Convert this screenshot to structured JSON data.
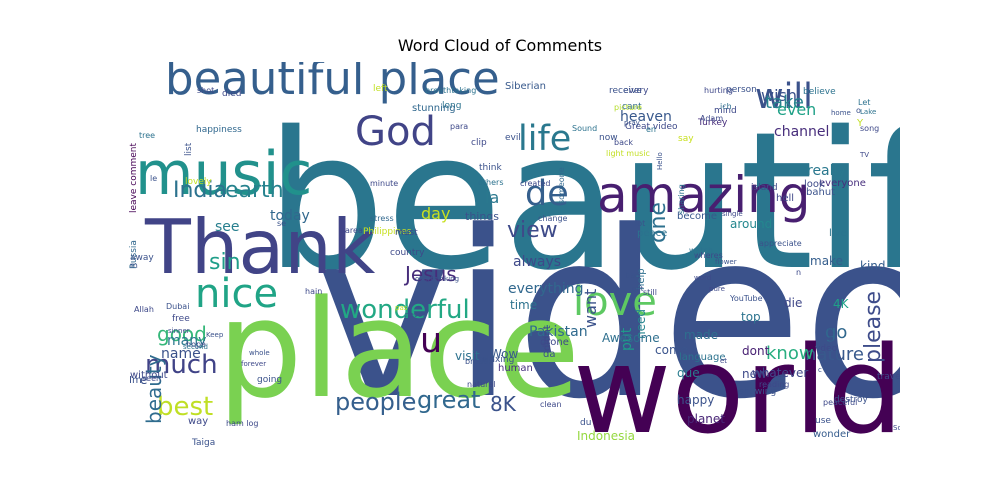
{
  "title": "Word Cloud of Comments",
  "words": [
    {
      "text": "beautiful",
      "color": "#2a768e",
      "weight": 190
    },
    {
      "text": "video",
      "color": "#3b528b",
      "weight": 230
    },
    {
      "text": "place",
      "color": "#7ad151",
      "weight": 135
    },
    {
      "text": "world",
      "color": "#440154",
      "weight": 120
    },
    {
      "text": "Thank",
      "color": "#414487",
      "weight": 75
    },
    {
      "text": "music",
      "color": "#21918c",
      "weight": 60
    },
    {
      "text": "beautiful place",
      "color": "#355f8d",
      "weight": 45
    },
    {
      "text": "amazing",
      "color": "#481f70",
      "weight": 50
    },
    {
      "text": "love",
      "color": "#5ec962",
      "weight": 40
    },
    {
      "text": "nice",
      "color": "#20a486",
      "weight": 40
    },
    {
      "text": "God",
      "color": "#414487",
      "weight": 40
    },
    {
      "text": "life",
      "color": "#2a788e",
      "weight": 35
    },
    {
      "text": "de",
      "color": "#355f8d",
      "weight": 35
    },
    {
      "text": "will",
      "color": "#3b528b",
      "weight": 35
    },
    {
      "text": "u",
      "color": "#440154",
      "weight": 35
    },
    {
      "text": "wonderful",
      "color": "#22a884",
      "weight": 26
    },
    {
      "text": "much",
      "color": "#404387",
      "weight": 26
    },
    {
      "text": "people",
      "color": "#355f8d",
      "weight": 24
    },
    {
      "text": "great",
      "color": "#31688e",
      "weight": 24
    },
    {
      "text": "best",
      "color": "#c0df25",
      "weight": 26
    },
    {
      "text": "earth",
      "color": "#26828e",
      "weight": 22
    },
    {
      "text": "India",
      "color": "#2c728e",
      "weight": 22
    },
    {
      "text": "sin",
      "color": "#1f9e89",
      "weight": 22
    },
    {
      "text": "Jesus",
      "color": "#472d7b",
      "weight": 20
    },
    {
      "text": "view",
      "color": "#3e4a89",
      "weight": 22
    },
    {
      "text": "one",
      "color": "#2d708e",
      "weight": 22
    },
    {
      "text": "please",
      "color": "#3e4c8a",
      "weight": 22
    },
    {
      "text": "beauty",
      "color": "#2f6c8e",
      "weight": 20
    },
    {
      "text": "good",
      "color": "#35b779",
      "weight": 20
    },
    {
      "text": "8K",
      "color": "#3b528b",
      "weight": 20
    },
    {
      "text": "nature",
      "color": "#38598c",
      "weight": 18
    },
    {
      "text": "know",
      "color": "#28ae80",
      "weight": 18
    },
    {
      "text": "go",
      "color": "#31688e",
      "weight": 18
    },
    {
      "text": "wish",
      "color": "#3b528b",
      "weight": 16
    },
    {
      "text": "take",
      "color": "#26828e",
      "weight": 18
    },
    {
      "text": "even",
      "color": "#1fa187",
      "weight": 16
    },
    {
      "text": "channel",
      "color": "#472d7b",
      "weight": 14
    },
    {
      "text": "see",
      "color": "#277f8e",
      "weight": 14
    },
    {
      "text": "la",
      "color": "#2a788e",
      "weight": 16
    },
    {
      "text": "day",
      "color": "#c8e020",
      "weight": 16
    },
    {
      "text": "heaven",
      "color": "#38588c",
      "weight": 14
    },
    {
      "text": "really",
      "color": "#2a788e",
      "weight": 14
    },
    {
      "text": "made",
      "color": "#2e6e8e",
      "weight": 12
    },
    {
      "text": "today",
      "color": "#31688e",
      "weight": 14
    },
    {
      "text": "everything",
      "color": "#31688e",
      "weight": 14
    },
    {
      "text": "want",
      "color": "#3b528b",
      "weight": 16
    },
    {
      "text": "Pakistan",
      "color": "#306a8e",
      "weight": 14
    },
    {
      "text": "always",
      "color": "#3e4989",
      "weight": 14
    },
    {
      "text": "put",
      "color": "#1f998a",
      "weight": 14
    },
    {
      "text": "time",
      "color": "#2c728e",
      "weight": 12
    },
    {
      "text": "need",
      "color": "#25848e",
      "weight": 12
    },
    {
      "text": "que",
      "color": "#297b8e",
      "weight": 12
    },
    {
      "text": "name",
      "color": "#3b528b",
      "weight": 14
    },
    {
      "text": "many",
      "color": "#2a778e",
      "weight": 14
    },
    {
      "text": "Awesome",
      "color": "#2e6f8e",
      "weight": 12
    },
    {
      "text": "new",
      "color": "#3e4a89",
      "weight": 12
    },
    {
      "text": "dont",
      "color": "#482173",
      "weight": 12
    },
    {
      "text": "come",
      "color": "#3a548c",
      "weight": 12
    },
    {
      "text": "visit",
      "color": "#2d718e",
      "weight": 12
    },
    {
      "text": "top",
      "color": "#2c738e",
      "weight": 12
    },
    {
      "text": "die",
      "color": "#3f4788",
      "weight": 12
    },
    {
      "text": "kind",
      "color": "#355e8d",
      "weight": 12
    },
    {
      "text": "make",
      "color": "#355e8d",
      "weight": 12
    },
    {
      "text": "whatever",
      "color": "#3f4889",
      "weight": 12
    },
    {
      "text": "wonder",
      "color": "#365c8d",
      "weight": 10
    },
    {
      "text": "Indonesia",
      "color": "#95d840",
      "weight": 12
    },
    {
      "text": "happy",
      "color": "#3b528b",
      "weight": 12
    },
    {
      "text": "planet",
      "color": "#482576",
      "weight": 12
    },
    {
      "text": "Wow",
      "color": "#38598c",
      "weight": 12
    },
    {
      "text": "human",
      "color": "#46307e",
      "weight": 10
    },
    {
      "text": "da",
      "color": "#3b528b",
      "weight": 10
    },
    {
      "text": "drone",
      "color": "#3e4989",
      "weight": 10
    },
    {
      "text": "didnt",
      "color": "#3f4788",
      "weight": 10
    },
    {
      "text": "help",
      "color": "#2e6f8e",
      "weight": 10
    },
    {
      "text": "language",
      "color": "#2c738e",
      "weight": 10
    },
    {
      "text": "become",
      "color": "#38588c",
      "weight": 10
    },
    {
      "text": "around",
      "color": "#24878e",
      "weight": 12
    },
    {
      "text": "live",
      "color": "#2b748e",
      "weight": 10
    },
    {
      "text": "everyone",
      "color": "#472f7d",
      "weight": 10
    },
    {
      "text": "look",
      "color": "#3e4a89",
      "weight": 10
    },
    {
      "text": "hell",
      "color": "#3f4788",
      "weight": 10
    },
    {
      "text": "bahut",
      "color": "#3b528b",
      "weight": 10
    },
    {
      "text": "believe",
      "color": "#2c728e",
      "weight": 9
    },
    {
      "text": "person",
      "color": "#3b528b",
      "weight": 9
    },
    {
      "text": "hurting",
      "color": "#3f4889",
      "weight": 8
    },
    {
      "text": "every",
      "color": "#3e4989",
      "weight": 9
    },
    {
      "text": "receive",
      "color": "#3b528b",
      "weight": 9
    },
    {
      "text": "Siberian",
      "color": "#38598c",
      "weight": 10
    },
    {
      "text": "breathtaking",
      "color": "#2c728e",
      "weight": 8
    },
    {
      "text": "left",
      "color": "#c2df23",
      "weight": 9
    },
    {
      "text": "shot",
      "color": "#3e4989",
      "weight": 8
    },
    {
      "text": "died",
      "color": "#3e4a89",
      "weight": 9
    },
    {
      "text": "leave comment",
      "color": "#440154",
      "weight": 9
    },
    {
      "text": "Great video",
      "color": "#3e4989",
      "weight": 9
    },
    {
      "text": "light music",
      "color": "#c2df23",
      "weight": 8
    },
    {
      "text": "cant",
      "color": "#31688e",
      "weight": 9
    },
    {
      "text": "picture",
      "color": "#b5de2b",
      "weight": 8
    },
    {
      "text": "mind",
      "color": "#3e4989",
      "weight": 9
    },
    {
      "text": "say",
      "color": "#c8e020",
      "weight": 9
    },
    {
      "text": "ich",
      "color": "#2e6f8e",
      "weight": 8
    },
    {
      "text": "song",
      "color": "#3e4989",
      "weight": 8
    },
    {
      "text": "home",
      "color": "#3b528b",
      "weight": 7
    },
    {
      "text": "Let",
      "color": "#2c728e",
      "weight": 8
    },
    {
      "text": "Y",
      "color": "#c2df23",
      "weight": 10
    },
    {
      "text": "o",
      "color": "#3b528b",
      "weight": 8
    },
    {
      "text": "Lake",
      "color": "#2c728e",
      "weight": 7
    },
    {
      "text": "TV",
      "color": "#3e4989",
      "weight": 7
    },
    {
      "text": "tree",
      "color": "#2c728e",
      "weight": 8
    },
    {
      "text": "list",
      "color": "#3b528b",
      "weight": 9
    },
    {
      "text": "happiness",
      "color": "#31688e",
      "weight": 9
    },
    {
      "text": "stunning",
      "color": "#31688e",
      "weight": 10
    },
    {
      "text": "long",
      "color": "#2c728e",
      "weight": 9
    },
    {
      "text": "para",
      "color": "#3e4989",
      "weight": 8
    },
    {
      "text": "clip",
      "color": "#3e4989",
      "weight": 9
    },
    {
      "text": "evil",
      "color": "#3b528b",
      "weight": 9
    },
    {
      "text": "Sound",
      "color": "#2c728e",
      "weight": 8
    },
    {
      "text": "someone",
      "color": "#31688e",
      "weight": 8
    },
    {
      "text": "now",
      "color": "#3b528b",
      "weight": 9
    },
    {
      "text": "back",
      "color": "#3e4989",
      "weight": 8
    },
    {
      "text": "en",
      "color": "#2c728e",
      "weight": 8
    },
    {
      "text": "pray",
      "color": "#3b528b",
      "weight": 7
    },
    {
      "text": "Turkey",
      "color": "#472d7b",
      "weight": 9
    },
    {
      "text": "lovely",
      "color": "#c2df23",
      "weight": 9
    },
    {
      "text": "minute",
      "color": "#3e4989",
      "weight": 8
    },
    {
      "text": "think",
      "color": "#3b528b",
      "weight": 9
    },
    {
      "text": "others",
      "color": "#2c728e",
      "weight": 8
    },
    {
      "text": "created",
      "color": "#3e4989",
      "weight": 8
    },
    {
      "text": "change",
      "color": "#3b528b",
      "weight": 8
    },
    {
      "text": "sharing",
      "color": "#2c728e",
      "weight": 8
    },
    {
      "text": "Adam",
      "color": "#3e4989",
      "weight": 8
    },
    {
      "text": "island",
      "color": "#3e4989",
      "weight": 9
    },
    {
      "text": "le",
      "color": "#3b528b",
      "weight": 8
    },
    {
      "text": "Russia",
      "color": "#31688e",
      "weight": 9
    },
    {
      "text": "area",
      "color": "#3e4989",
      "weight": 8
    },
    {
      "text": "se",
      "color": "#3b528b",
      "weight": 8
    },
    {
      "text": "stress",
      "color": "#31688e",
      "weight": 8
    },
    {
      "text": "things",
      "color": "#3b528b",
      "weight": 11
    },
    {
      "text": "Philippines",
      "color": "#c8e020",
      "weight": 9
    },
    {
      "text": "must",
      "color": "#3e4989",
      "weight": 9
    },
    {
      "text": "away",
      "color": "#3b528b",
      "weight": 9
    },
    {
      "text": "m",
      "color": "#3b528b",
      "weight": 8
    },
    {
      "text": "country",
      "color": "#3e4989",
      "weight": 9
    },
    {
      "text": "lot",
      "color": "#3b528b",
      "weight": 8
    },
    {
      "text": "peace",
      "color": "#2c728e",
      "weight": 10
    },
    {
      "text": "watch",
      "color": "#2c728e",
      "weight": 8
    },
    {
      "text": "wheres",
      "color": "#3e4989",
      "weight": 8
    },
    {
      "text": "word",
      "color": "#3e4989",
      "weight": 7
    },
    {
      "text": "flower",
      "color": "#3b528b",
      "weight": 7
    },
    {
      "text": "YouTube",
      "color": "#3b528b",
      "weight": 8
    },
    {
      "text": "pure",
      "color": "#3e4989",
      "weight": 7
    },
    {
      "text": "bad",
      "color": "#3b528b",
      "weight": 8
    },
    {
      "text": "still",
      "color": "#3e4989",
      "weight": 8
    },
    {
      "text": "gift",
      "color": "#3b528b",
      "weight": 7
    },
    {
      "text": "hain",
      "color": "#3e4989",
      "weight": 8
    },
    {
      "text": "overthinking",
      "color": "#3b528b",
      "weight": 7
    },
    {
      "text": "Allah",
      "color": "#3e4989",
      "weight": 8
    },
    {
      "text": "pas",
      "color": "#c2df23",
      "weight": 7
    },
    {
      "text": "Dubai",
      "color": "#3b528b",
      "weight": 8
    },
    {
      "text": "free",
      "color": "#3e4989",
      "weight": 9
    },
    {
      "text": "never",
      "color": "#3b528b",
      "weight": 7
    },
    {
      "text": "sinner",
      "color": "#3e4989",
      "weight": 7
    },
    {
      "text": "Keep",
      "color": "#3b528b",
      "weight": 7
    },
    {
      "text": "hope",
      "color": "#3e4989",
      "weight": 8
    },
    {
      "text": "second",
      "color": "#2c728e",
      "weight": 7
    },
    {
      "text": "going",
      "color": "#3b528b",
      "weight": 9
    },
    {
      "text": "without",
      "color": "#3e4989",
      "weight": 10
    },
    {
      "text": "Im",
      "color": "#3b528b",
      "weight": 10
    },
    {
      "text": "way",
      "color": "#3e4989",
      "weight": 10
    },
    {
      "text": "Taiga",
      "color": "#3b528b",
      "weight": 9
    },
    {
      "text": "ham log",
      "color": "#3e4989",
      "weight": 8
    },
    {
      "text": "whole",
      "color": "#3b528b",
      "weight": 7
    },
    {
      "text": "forever",
      "color": "#3e4989",
      "weight": 7
    },
    {
      "text": "e",
      "color": "#3b528b",
      "weight": 12
    },
    {
      "text": "seen",
      "color": "#3e4989",
      "weight": 8
    },
    {
      "text": "breath",
      "color": "#3b528b",
      "weight": 8
    },
    {
      "text": "natural",
      "color": "#3e4989",
      "weight": 8
    },
    {
      "text": "relaxing",
      "color": "#3b528b",
      "weight": 9
    },
    {
      "text": "clean",
      "color": "#3e4989",
      "weight": 8
    },
    {
      "text": "du",
      "color": "#3b528b",
      "weight": 9
    },
    {
      "text": "et",
      "color": "#3e4989",
      "weight": 7
    },
    {
      "text": "showing",
      "color": "#3b528b",
      "weight": 9
    },
    {
      "text": "reading",
      "color": "#3e4989",
      "weight": 8
    },
    {
      "text": "c",
      "color": "#3b528b",
      "weight": 7
    },
    {
      "text": "peaceful",
      "color": "#3e4989",
      "weight": 8
    },
    {
      "text": "destroy",
      "color": "#3b528b",
      "weight": 9
    },
    {
      "text": "vdeo",
      "color": "#3e4989",
      "weight": 9
    },
    {
      "text": "Zone",
      "color": "#3b528b",
      "weight": 8
    },
    {
      "text": "travel",
      "color": "#3e4989",
      "weight": 9
    },
    {
      "text": "use",
      "color": "#3b528b",
      "weight": 9
    },
    {
      "text": "South",
      "color": "#3e4989",
      "weight": 7
    },
    {
      "text": "Hello",
      "color": "#3b528b",
      "weight": 7
    },
    {
      "text": "single",
      "color": "#3e4989",
      "weight": 7
    },
    {
      "text": "appreciate",
      "color": "#3b528b",
      "weight": 8
    },
    {
      "text": "n",
      "color": "#3e4989",
      "weight": 8
    },
    {
      "text": "4K",
      "color": "#1fa187",
      "weight": 12
    }
  ]
}
